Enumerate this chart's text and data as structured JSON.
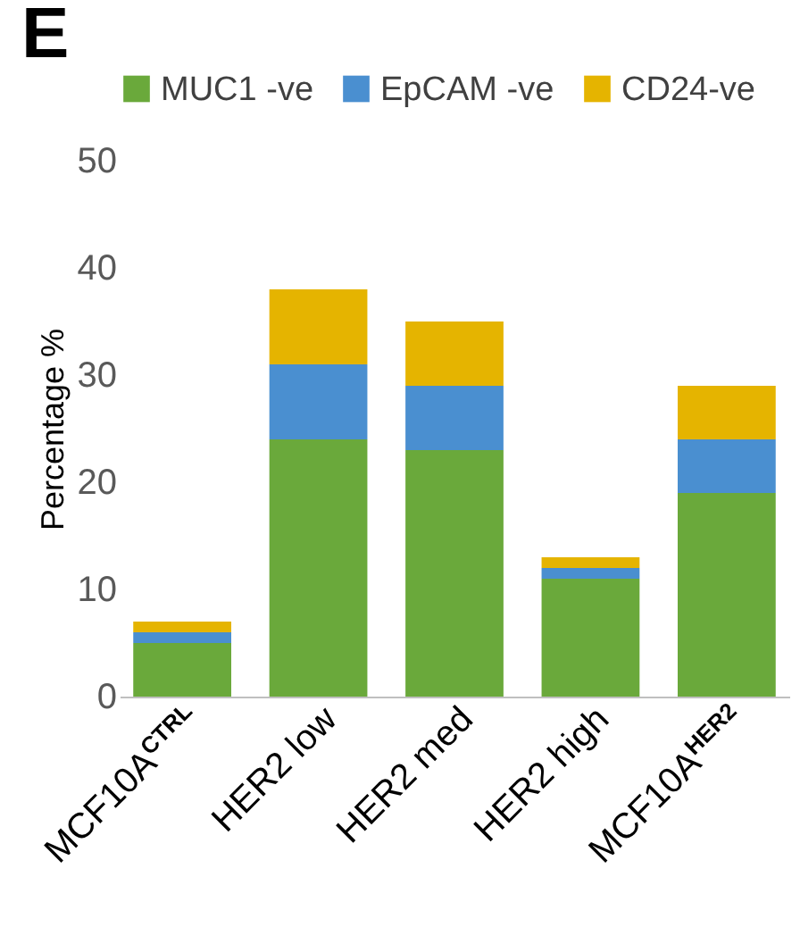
{
  "chart_data": {
    "type": "bar",
    "title": "E",
    "ylabel": "Percentage %",
    "stacked": true,
    "legend": "top",
    "grid": false,
    "categories": [
      "MCF10A$^{CTRL}$",
      "HER2 low",
      "HER2 med",
      "HER2 high",
      "MCF10A$^{HER2}$"
    ],
    "series": [
      {
        "name": "MUC1 -ve",
        "color": "#6aa93b",
        "values": [
          5,
          24,
          23,
          11,
          19
        ]
      },
      {
        "name": "EpCAM -ve",
        "color": "#4a8fd0",
        "values": [
          1,
          7,
          6,
          1,
          5
        ]
      },
      {
        "name": "CD24-ve",
        "color": "#e5b400",
        "values": [
          1,
          7,
          6,
          1,
          5
        ]
      }
    ],
    "ylim": [
      0,
      50
    ],
    "yticks": [
      0,
      10,
      20,
      30,
      40,
      50
    ]
  }
}
